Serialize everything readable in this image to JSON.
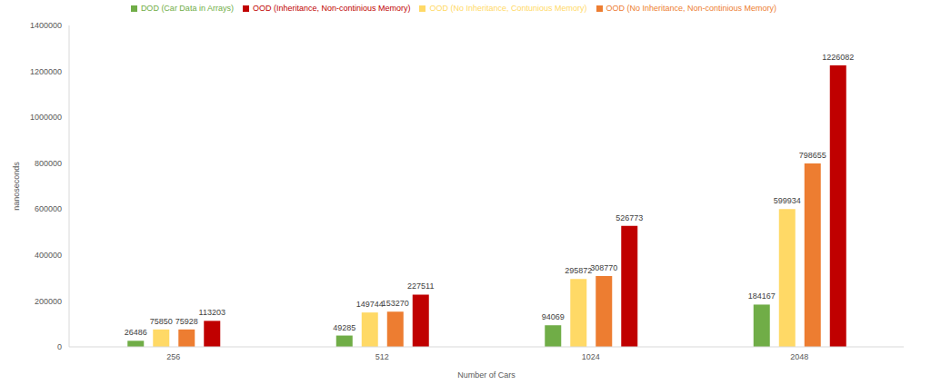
{
  "chart_data": {
    "type": "bar",
    "x_label": "Number of Cars",
    "y_label": "nanoseconds",
    "categories": [
      "256",
      "512",
      "1024",
      "2048"
    ],
    "series": [
      {
        "name": "DOD (Car Data in Arrays)",
        "color": "#70ad47",
        "values": [
          26486,
          49285,
          94069,
          184167
        ]
      },
      {
        "name": "OOD (No Inheritance, Contunious Memory)",
        "color": "#ffd966",
        "values": [
          75850,
          149744,
          295872,
          599934
        ]
      },
      {
        "name": "OOD (No Inheritance, Non-continious Memory)",
        "color": "#ed7d31",
        "values": [
          75928,
          153270,
          308770,
          798655
        ]
      },
      {
        "name": "OOD (Inheritance, Non-continious Memory)",
        "color": "#c00000",
        "values": [
          113203,
          227511,
          526773,
          1226082
        ]
      }
    ],
    "ylim": [
      0,
      1400000
    ],
    "yticks": [
      0,
      200000,
      400000,
      600000,
      800000,
      1000000,
      1200000,
      1400000
    ],
    "grid": false,
    "legend": "top",
    "data_labels": true
  }
}
